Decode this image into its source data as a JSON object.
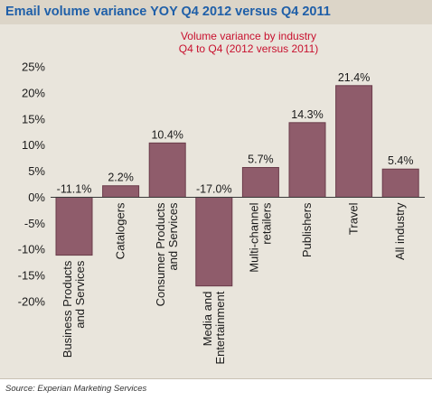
{
  "header": {
    "title": "Email volume variance YOY Q4 2012 versus Q4 2011"
  },
  "footer": {
    "source": "Source: Experian Marketing Services"
  },
  "chart_data": {
    "type": "bar",
    "title": "Volume variance by industry",
    "subtitle": "Q4 to Q4 (2012 versus 2011)",
    "categories": [
      [
        "Business Products",
        "and Services"
      ],
      [
        "Catalogers"
      ],
      [
        "Consumer Products",
        "and Services"
      ],
      [
        "Media and",
        "Entertainment"
      ],
      [
        "Multi-channel",
        "retailers"
      ],
      [
        "Publishers"
      ],
      [
        "Travel"
      ],
      [
        "All industry"
      ]
    ],
    "values": [
      -11.1,
      2.2,
      10.4,
      -17.0,
      5.7,
      14.3,
      21.4,
      5.4
    ],
    "data_labels": [
      "-11.1%",
      "2.2%",
      "10.4%",
      "-17.0%",
      "5.7%",
      "14.3%",
      "21.4%",
      "5.4%"
    ],
    "ylim": [
      -20,
      25
    ],
    "yticks": [
      25,
      20,
      15,
      10,
      5,
      0,
      -5,
      -10,
      -15,
      -20
    ],
    "ytick_labels": [
      "25%",
      "20%",
      "15%",
      "10%",
      "5%",
      "0%",
      "-5%",
      "-10%",
      "-15%",
      "-20%"
    ],
    "xlabel": "",
    "ylabel": "",
    "grid": false,
    "legend": "none",
    "bar_color": "#8f5c6b",
    "bar_edge_color": "#6a3b4a"
  }
}
